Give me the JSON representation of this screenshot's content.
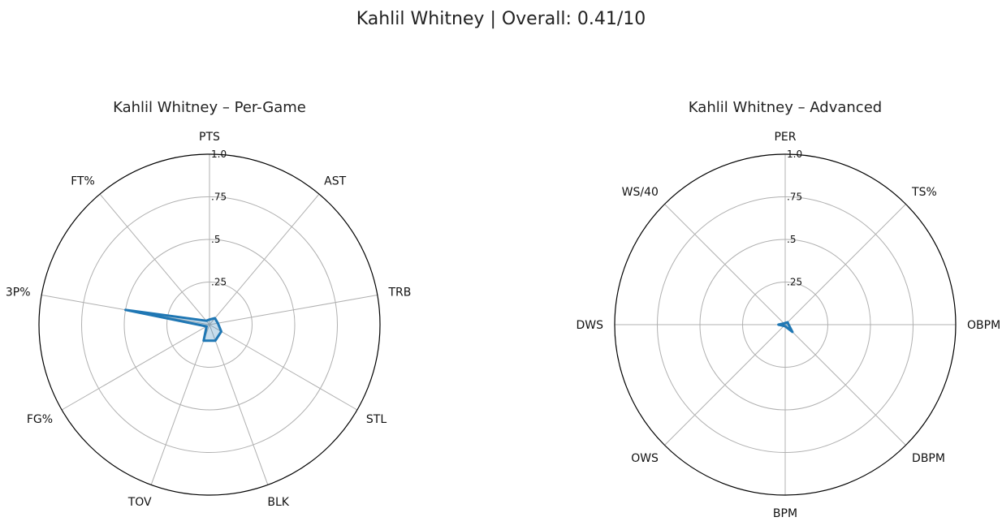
{
  "suptitle": "Kahlil Whitney | Overall: 0.41/10",
  "chart_data": [
    {
      "type": "radar",
      "title": "Kahlil Whitney – Per-Game",
      "categories": [
        "PTS",
        "AST",
        "TRB",
        "STL",
        "BLK",
        "TOV",
        "FG%",
        "3P%",
        "FT%"
      ],
      "values": [
        0.03,
        0.05,
        0.05,
        0.08,
        0.1,
        0.1,
        0.02,
        0.5,
        0.03
      ],
      "rlim": [
        0,
        1
      ],
      "rticks": [
        0.25,
        0.5,
        0.75,
        1.0
      ],
      "rtick_labels": [
        ".25",
        ".5",
        ".75",
        "1.0"
      ],
      "grid": true,
      "color": "#1f77b4"
    },
    {
      "type": "radar",
      "title": "Kahlil Whitney – Advanced",
      "categories": [
        "PER",
        "TS%",
        "OBPM",
        "DBPM",
        "BPM",
        "OWS",
        "DWS",
        "WS/40"
      ],
      "values": [
        0.01,
        0.02,
        0.02,
        0.06,
        0.01,
        0.01,
        0.04,
        0.01
      ],
      "rlim": [
        0,
        1
      ],
      "rticks": [
        0.25,
        0.5,
        0.75,
        1.0
      ],
      "rtick_labels": [
        ".25",
        ".5",
        ".75",
        "1.0"
      ],
      "grid": true,
      "color": "#1f77b4"
    }
  ]
}
